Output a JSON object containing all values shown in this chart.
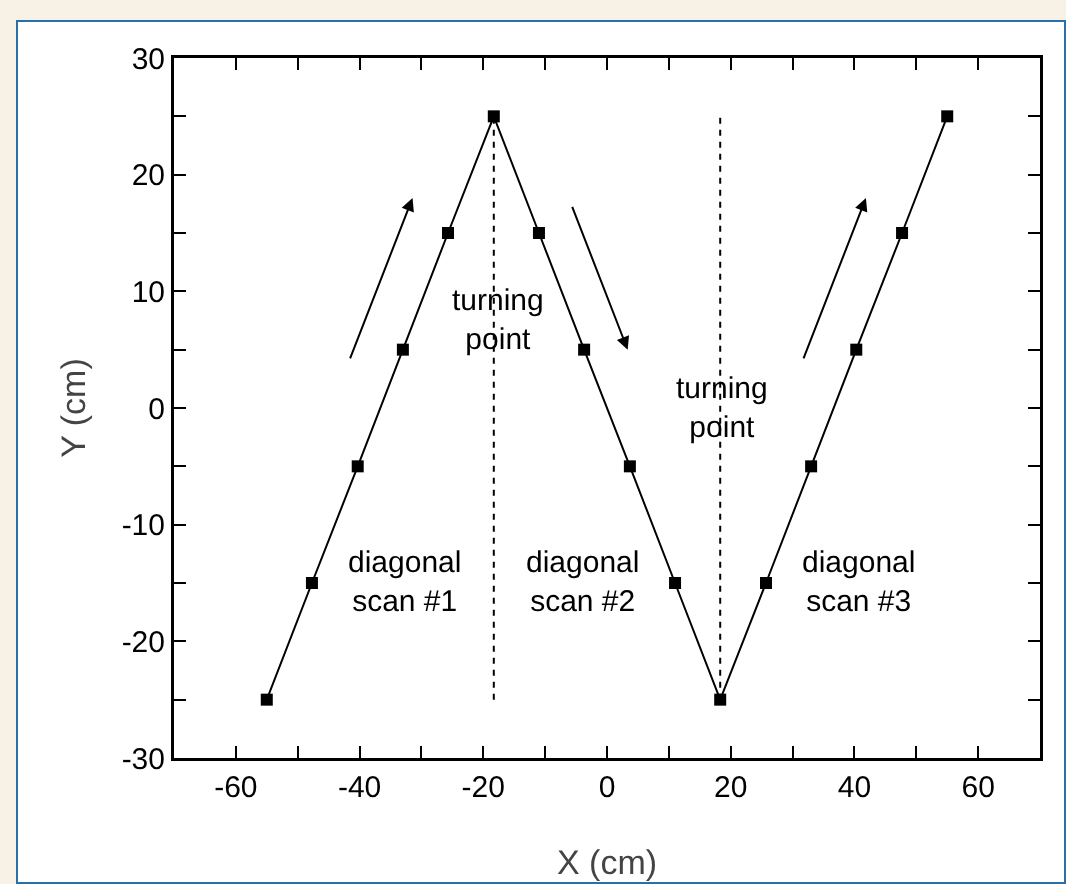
{
  "chart_data": {
    "type": "line",
    "xlabel": "X (cm)",
    "ylabel": "Y (cm)",
    "x": [
      -55,
      -47.7,
      -40.3,
      -33,
      -25.7,
      -18.3,
      -11,
      -3.7,
      3.7,
      11,
      18.3,
      25.7,
      33,
      40.3,
      47.7,
      55
    ],
    "series": [
      {
        "color": "#000000",
        "values": [
          -25,
          -15,
          -5,
          5,
          15,
          25,
          15,
          5,
          -5,
          -15,
          -25,
          -15,
          -5,
          5,
          15,
          25
        ]
      }
    ],
    "marker": "square",
    "line_style": "solid",
    "xlim": [
      -70,
      70
    ],
    "xticks": [
      {
        "value": -70,
        "label": null
      },
      -60,
      {
        "value": -50,
        "label": null
      },
      -40,
      {
        "value": -30,
        "label": null
      },
      -20,
      {
        "value": -10,
        "label": null
      },
      0,
      {
        "value": 10,
        "label": null
      },
      20,
      {
        "value": 30,
        "label": null
      },
      40,
      {
        "value": 50,
        "label": null
      },
      60,
      {
        "value": 70,
        "label": null
      }
    ],
    "ylim": [
      -30,
      30
    ],
    "yticks": [
      -30,
      {
        "value": -25,
        "label": null
      },
      -20,
      {
        "value": -15,
        "label": null
      },
      -10,
      {
        "value": -5,
        "label": null
      },
      0,
      {
        "value": 5,
        "label": null
      },
      10,
      {
        "value": 15,
        "label": null
      },
      20,
      {
        "value": 25,
        "label": null
      },
      30
    ],
    "ref_lines": [
      {
        "axis": "x",
        "value": -18.3,
        "color": "#000000",
        "line_style": "dashed"
      },
      {
        "axis": "x",
        "value": 18.3,
        "color": "#000000",
        "line_style": "dashed"
      }
    ],
    "annotations": [
      {
        "text": "turning\npoint",
        "x": -17.5,
        "y": 7.5
      },
      {
        "text": "turning\npoint",
        "x": 18.5,
        "y": 0
      },
      "diagonal\nscan #1",
      "diagonal\nscan #2",
      "diagonal\nscan #3"
    ]
  }
}
